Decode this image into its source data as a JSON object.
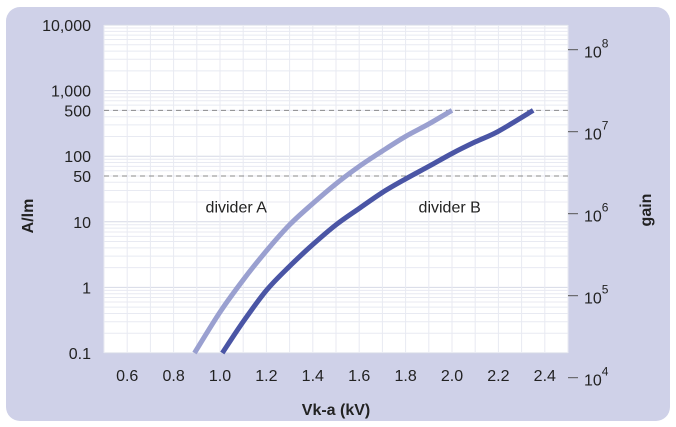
{
  "chart_data": {
    "type": "line",
    "xlabel": "Vk-a (kV)",
    "ylabel": "A/lm",
    "y2label": "gain",
    "xlim": [
      0.5,
      2.5
    ],
    "ylim": [
      0.1,
      10000
    ],
    "y_scale": "log",
    "y2lim": [
      20000,
      200000000
    ],
    "y2_scale": "log",
    "x_ticks": [
      "0.6",
      "0.8",
      "1.0",
      "1.2",
      "1.4",
      "1.6",
      "1.8",
      "2.0",
      "2.2",
      "2.4"
    ],
    "y_ticks": [
      {
        "value": 10000,
        "label": "10,000"
      },
      {
        "value": 1000,
        "label": "1,000"
      },
      {
        "value": 500,
        "label": "500"
      },
      {
        "value": 100,
        "label": "100"
      },
      {
        "value": 50,
        "label": "50"
      },
      {
        "value": 10,
        "label": "10"
      },
      {
        "value": 1,
        "label": "1"
      },
      {
        "value": 0.1,
        "label": "0.1"
      }
    ],
    "y2_ticks": [
      {
        "value": 10000,
        "base": "10",
        "exp": "4"
      },
      {
        "value": 100000,
        "base": "10",
        "exp": "5"
      },
      {
        "value": 1000000,
        "base": "10",
        "exp": "6"
      },
      {
        "value": 10000000,
        "base": "10",
        "exp": "7"
      },
      {
        "value": 100000000,
        "base": "10",
        "exp": "8"
      }
    ],
    "reference_lines": [
      500,
      50
    ],
    "grid": true,
    "series": [
      {
        "name": "divider A",
        "color": "#9aa0d0",
        "x": [
          0.89,
          1.0,
          1.1,
          1.2,
          1.3,
          1.4,
          1.5,
          1.6,
          1.7,
          1.8,
          1.9,
          2.0
        ],
        "y": [
          0.1,
          0.42,
          1.3,
          3.6,
          9,
          19,
          38,
          70,
          120,
          200,
          310,
          500
        ]
      },
      {
        "name": "divider B",
        "color": "#4a55a5",
        "x": [
          1.01,
          1.1,
          1.2,
          1.3,
          1.4,
          1.5,
          1.6,
          1.7,
          1.8,
          1.9,
          2.0,
          2.1,
          2.2,
          2.35
        ],
        "y": [
          0.1,
          0.3,
          0.9,
          2.1,
          4.5,
          9,
          16,
          28,
          45,
          70,
          110,
          165,
          240,
          500
        ]
      }
    ],
    "annotations": [
      {
        "text": "divider A",
        "x": 1.07,
        "y": 17
      },
      {
        "text": "divider B",
        "x": 1.99,
        "y": 17
      }
    ]
  }
}
